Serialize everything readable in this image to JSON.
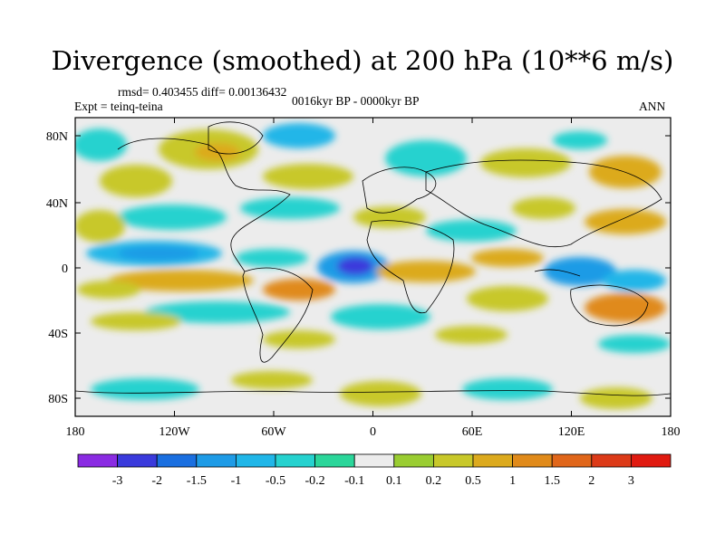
{
  "title": "Divergence (smoothed) at 200 hPa (10**6 m/s)",
  "stats": "rmsd= 0.403455 diff= 0.00136432",
  "experiment": "Expt = teinq-teina",
  "period": "0016kyr BP - 0000kyr BP",
  "season": "ANN",
  "axes": {
    "lat_labels": [
      "80N",
      "40N",
      "0",
      "40S",
      "80S"
    ],
    "lon_labels": [
      "180",
      "120W",
      "60W",
      "0",
      "60E",
      "120E",
      "180"
    ]
  },
  "colorbar": {
    "labels": [
      "-3",
      "-2",
      "-1.5",
      "-1",
      "-0.5",
      "-0.2",
      "-0.1",
      "0.1",
      "0.2",
      "0.5",
      "1",
      "1.5",
      "2",
      "3"
    ],
    "colors": [
      "#8a2be2",
      "#3a3adc",
      "#1a6fe0",
      "#1e9be6",
      "#20b6e8",
      "#26d2cf",
      "#2bd69a",
      "#ececec",
      "#9acd32",
      "#c8c82a",
      "#dcaa1e",
      "#e08a1a",
      "#e0661a",
      "#dc3a18",
      "#e01a10"
    ]
  },
  "colors": {
    "land_outline": "#000000",
    "zero_band": "#ececec"
  }
}
